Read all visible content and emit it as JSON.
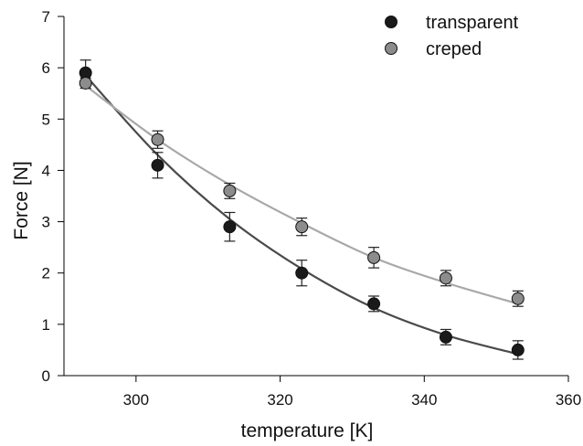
{
  "chart_data": {
    "type": "scatter",
    "title": "",
    "xlabel": "temperature [K]",
    "ylabel": "Force [N]",
    "xlim": [
      290,
      360
    ],
    "ylim": [
      0,
      7
    ],
    "x_ticks": [
      300,
      320,
      340,
      360
    ],
    "y_ticks": [
      0,
      1,
      2,
      3,
      4,
      5,
      6,
      7
    ],
    "x_tick_labels": [
      "300",
      "320",
      "340",
      "360"
    ],
    "y_tick_labels": [
      "0",
      "1",
      "2",
      "3",
      "4",
      "5",
      "6",
      "7"
    ],
    "grid": false,
    "legend_position": "top-right",
    "x": [
      293,
      303,
      313,
      323,
      333,
      343,
      353
    ],
    "series": [
      {
        "name": "transparent",
        "color": "#1a1a1a",
        "line_color": "#4a4a4a",
        "values": [
          5.9,
          4.1,
          2.9,
          2.0,
          1.4,
          0.75,
          0.5
        ],
        "error": [
          0.25,
          0.25,
          0.28,
          0.25,
          0.15,
          0.15,
          0.18
        ],
        "fit": [
          5.85,
          4.3,
          3.05,
          2.08,
          1.32,
          0.79,
          0.42
        ]
      },
      {
        "name": "creped",
        "color": "#8c8c8c",
        "line_color": "#a8a8a8",
        "values": [
          5.7,
          4.6,
          3.6,
          2.9,
          2.3,
          1.9,
          1.5
        ],
        "error": [
          0.1,
          0.17,
          0.15,
          0.17,
          0.2,
          0.15,
          0.15
        ],
        "fit": [
          5.65,
          4.6,
          3.72,
          2.97,
          2.3,
          1.81,
          1.4
        ]
      }
    ]
  }
}
